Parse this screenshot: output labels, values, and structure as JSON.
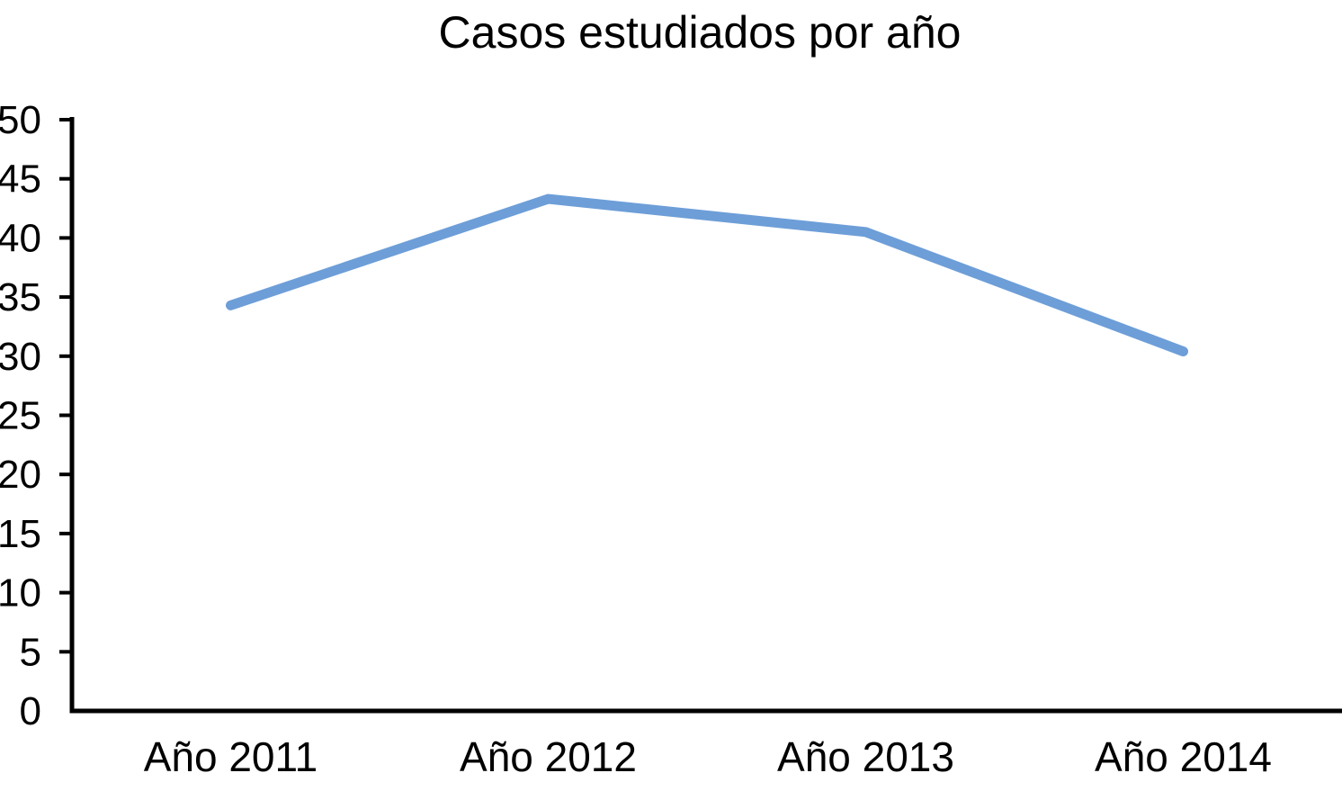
{
  "chart_data": {
    "type": "line",
    "title": "Casos estudiados por año",
    "categories": [
      "Año 2011",
      "Año 2012",
      "Año 2013",
      "Año 2014"
    ],
    "series": [
      {
        "name": "Casos estudiados",
        "values": [
          34.3,
          43.3,
          40.5,
          30.4
        ]
      }
    ],
    "xlabel": "",
    "ylabel": "",
    "ylim": [
      0,
      50
    ],
    "ytick_step": 5,
    "ytick_labels": [
      "0",
      "5",
      "10",
      "15",
      "20",
      "25",
      "30",
      "35",
      "40",
      "45",
      "50"
    ],
    "grid": false,
    "legend_position": "none",
    "line_color": "#6D9ED8",
    "axis_color": "#000000",
    "background_color": "#ffffff",
    "line_width": 11
  }
}
